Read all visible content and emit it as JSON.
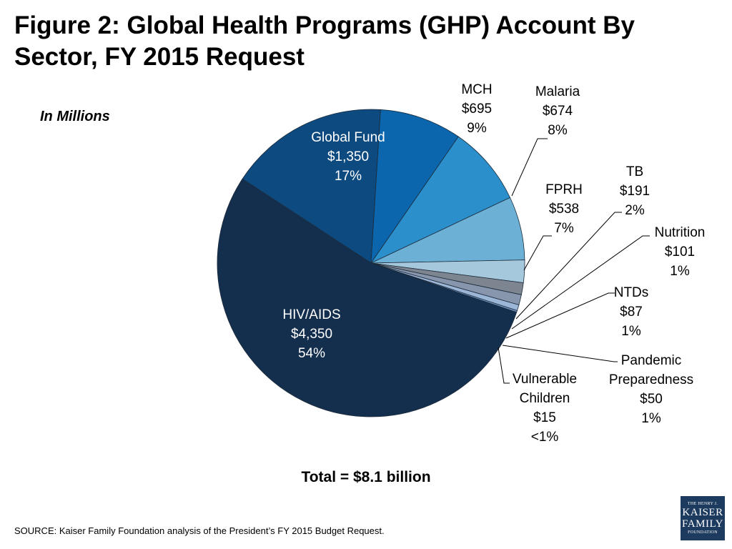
{
  "title": "Figure 2: Global Health Programs (GHP) Account By Sector, FY 2015 Request",
  "subtitle": "In Millions",
  "total": "Total = $8.1 billion",
  "source": "SOURCE: Kaiser Family Foundation analysis of the President’s FY 2015 Budget Request.",
  "logo": {
    "line1": "THE HENRY J.",
    "line2": "KAISER",
    "line3": "FAMILY",
    "line4": "FOUNDATION"
  },
  "chart_data": {
    "type": "pie",
    "title": "Figure 2: Global Health Programs (GHP) Account By Sector, FY 2015 Request",
    "unit": "In Millions",
    "slices": [
      {
        "label": "Global Fund",
        "value": 1350,
        "value_text": "$1,350",
        "pct": "17%",
        "color": "#0d4a80"
      },
      {
        "label": "MCH",
        "value": 695,
        "value_text": "$695",
        "pct": "9%",
        "color": "#0b66ad"
      },
      {
        "label": "Malaria",
        "value": 674,
        "value_text": "$674",
        "pct": "8%",
        "color": "#2b8fcc"
      },
      {
        "label": "FPRH",
        "value": 538,
        "value_text": "$538",
        "pct": "7%",
        "color": "#6cb0d6"
      },
      {
        "label": "TB",
        "value": 191,
        "value_text": "$191",
        "pct": "2%",
        "color": "#a5c8dc"
      },
      {
        "label": "Nutrition",
        "value": 101,
        "value_text": "$101",
        "pct": "1%",
        "color": "#7d8591"
      },
      {
        "label": "NTDs",
        "value": 87,
        "value_text": "$87",
        "pct": "1%",
        "color": "#8896ad"
      },
      {
        "label": "Pandemic Preparedness",
        "value": 50,
        "value_text": "$50",
        "pct": "1%",
        "color": "#9cb6d8"
      },
      {
        "label": "Vulnerable Children",
        "value": 15,
        "value_text": "$15",
        "pct": "<1%",
        "color": "#6e93c4"
      },
      {
        "label": "HIV/AIDS",
        "value": 4350,
        "value_text": "$4,350",
        "pct": "54%",
        "color": "#142e4d"
      }
    ]
  }
}
